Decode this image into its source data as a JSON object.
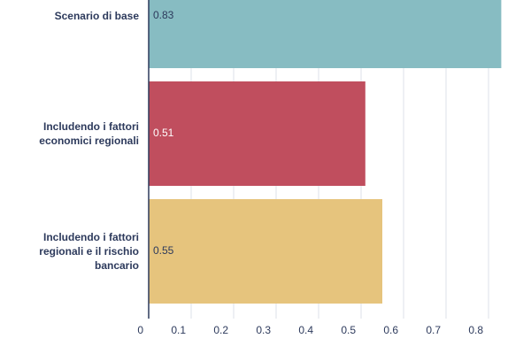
{
  "chart_data": {
    "type": "barh",
    "categories": [
      "Scenario di base",
      "Includendo i fattori economici regionali",
      "Includendo i fattori regionali e il rischio bancario"
    ],
    "values": [
      0.83,
      0.51,
      0.55
    ],
    "colors": [
      "#87bcc2",
      "#c04e5e",
      "#e6c47d"
    ],
    "label_colors": [
      "#2d3a5c",
      "#ffffff",
      "#2d3a5c"
    ],
    "xlim": [
      0,
      0.9
    ],
    "xticks": [
      0,
      0.1,
      0.2,
      0.3,
      0.4,
      0.5,
      0.6,
      0.7,
      0.8
    ],
    "grid": true
  }
}
